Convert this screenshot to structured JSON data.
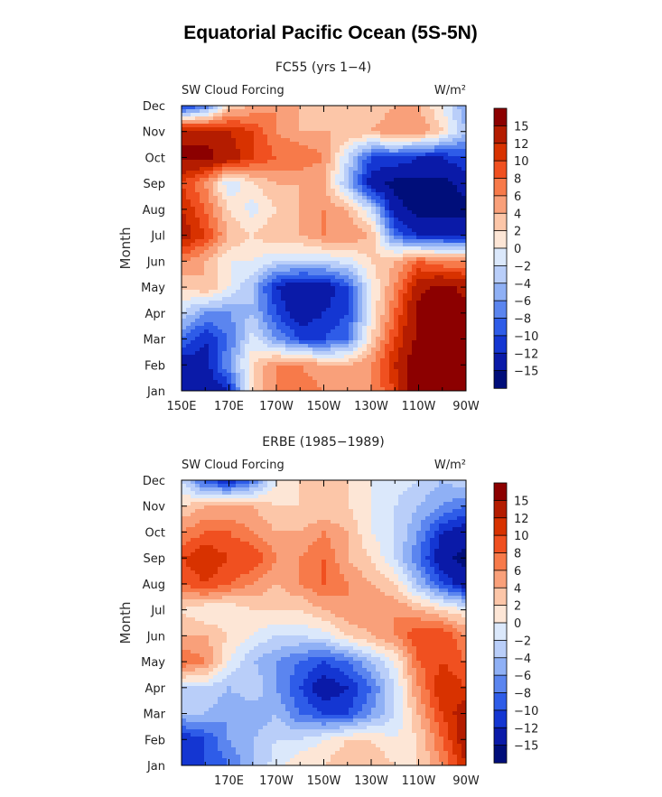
{
  "figure": {
    "title": "Equatorial Pacific Ocean (5S-5N)"
  },
  "colorbar": {
    "labels": [
      "15",
      "12",
      "10",
      "8",
      "6",
      "4",
      "2",
      "0",
      "−2",
      "−4",
      "−6",
      "−8",
      "−10",
      "−12",
      "−15"
    ],
    "colors": [
      "#8c0000",
      "#b41c00",
      "#d83200",
      "#f05020",
      "#f77a4a",
      "#f9a07a",
      "#fcc6a8",
      "#fde6d6",
      "#dbe8fb",
      "#b9cef9",
      "#8fb0f5",
      "#5b85ef",
      "#2e5ce8",
      "#1436d2",
      "#0a1aa8",
      "#000e7a"
    ],
    "levels": [
      -15,
      -12,
      -10,
      -8,
      -6,
      -4,
      -2,
      0,
      2,
      4,
      6,
      8,
      10,
      12,
      15
    ]
  },
  "chart_data": [
    {
      "type": "heatmap",
      "title": "FC55 (yrs 1−4)",
      "left_label": "SW Cloud Forcing",
      "units": "W/m²",
      "ylabel": "Month",
      "x_ticks": [
        "150E",
        "170E",
        "170W",
        "150W",
        "130W",
        "110W",
        "90W"
      ],
      "y_ticks": [
        "Jan",
        "Feb",
        "Mar",
        "Apr",
        "May",
        "Jun",
        "Jul",
        "Aug",
        "Sep",
        "Oct",
        "Nov",
        "Dec"
      ],
      "x_lon": [
        150,
        160,
        170,
        180,
        190,
        200,
        210,
        220,
        230,
        240,
        250,
        260,
        270
      ],
      "y_month": [
        "Jan",
        "Feb",
        "Mar",
        "Apr",
        "May",
        "Jun",
        "Jul",
        "Aug",
        "Sep",
        "Oct",
        "Nov",
        "Dec"
      ],
      "z": [
        [
          -14,
          -15,
          -12,
          2,
          6,
          8,
          6,
          4,
          6,
          10,
          18,
          18,
          16
        ],
        [
          -14,
          -13,
          -6,
          2,
          6,
          6,
          4,
          4,
          6,
          12,
          18,
          18,
          16
        ],
        [
          -8,
          -12,
          -8,
          -1,
          -6,
          -10,
          -10,
          -8,
          2,
          10,
          16,
          18,
          15
        ],
        [
          -2,
          -6,
          -6,
          -4,
          -10,
          -14,
          -12,
          -10,
          0,
          8,
          16,
          18,
          16
        ],
        [
          2,
          4,
          0,
          -4,
          -12,
          -15,
          -14,
          -10,
          0,
          6,
          14,
          16,
          14
        ],
        [
          6,
          4,
          0,
          0,
          -2,
          -2,
          -2,
          -1,
          2,
          4,
          8,
          6,
          6
        ],
        [
          14,
          10,
          4,
          2,
          4,
          4,
          6,
          6,
          4,
          -8,
          -12,
          -12,
          -12
        ],
        [
          12,
          8,
          2,
          -1,
          2,
          4,
          6,
          4,
          -2,
          -14,
          -16,
          -16,
          -16
        ],
        [
          10,
          6,
          -2,
          2,
          4,
          4,
          4,
          -4,
          -14,
          -16,
          -16,
          -16,
          -14
        ],
        [
          16,
          16,
          14,
          10,
          8,
          8,
          6,
          -2,
          -10,
          -10,
          -12,
          -12,
          -10
        ],
        [
          14,
          14,
          12,
          10,
          6,
          4,
          4,
          4,
          4,
          6,
          6,
          2,
          -4
        ],
        [
          -12,
          -8,
          2,
          4,
          6,
          4,
          2,
          2,
          2,
          4,
          4,
          0,
          -6
        ]
      ]
    },
    {
      "type": "heatmap",
      "title": "ERBE (1985−1989)",
      "left_label": "SW Cloud Forcing",
      "units": "W/m²",
      "ylabel": "Month",
      "x_ticks": [
        "",
        "170E",
        "170W",
        "150W",
        "130W",
        "110W",
        "90W"
      ],
      "y_ticks": [
        "Jan",
        "Feb",
        "Mar",
        "Apr",
        "May",
        "Jun",
        "Jul",
        "Aug",
        "Sep",
        "Oct",
        "Nov",
        "Dec"
      ],
      "x_lon": [
        150,
        160,
        170,
        180,
        190,
        200,
        210,
        220,
        230,
        240,
        250,
        260,
        270
      ],
      "y_month": [
        "Jan",
        "Feb",
        "Mar",
        "Apr",
        "May",
        "Jun",
        "Jul",
        "Aug",
        "Sep",
        "Oct",
        "Nov",
        "Dec"
      ],
      "z": [
        [
          -12,
          -10,
          -8,
          -4,
          -1,
          2,
          2,
          4,
          4,
          2,
          2,
          6,
          12
        ],
        [
          -12,
          -10,
          -6,
          -4,
          -2,
          -2,
          0,
          2,
          2,
          0,
          2,
          8,
          14
        ],
        [
          -4,
          -4,
          -6,
          -6,
          -4,
          -8,
          -10,
          -10,
          -6,
          -2,
          4,
          10,
          14
        ],
        [
          -2,
          -2,
          -4,
          -2,
          -6,
          -10,
          -14,
          -12,
          -8,
          -2,
          6,
          12,
          10
        ],
        [
          8,
          6,
          0,
          -4,
          -6,
          -8,
          -10,
          -8,
          -4,
          0,
          8,
          10,
          8
        ],
        [
          4,
          4,
          2,
          0,
          -2,
          -2,
          -1,
          2,
          4,
          6,
          10,
          10,
          6
        ],
        [
          2,
          0,
          0,
          2,
          2,
          2,
          4,
          6,
          6,
          6,
          4,
          2,
          0
        ],
        [
          8,
          10,
          8,
          6,
          4,
          6,
          8,
          6,
          4,
          2,
          -4,
          -10,
          -14
        ],
        [
          10,
          12,
          10,
          10,
          6,
          6,
          8,
          4,
          2,
          -2,
          -8,
          -14,
          -16
        ],
        [
          6,
          8,
          8,
          6,
          4,
          4,
          6,
          4,
          0,
          -2,
          -6,
          -12,
          -14
        ],
        [
          2,
          4,
          4,
          4,
          2,
          2,
          2,
          2,
          0,
          -2,
          -4,
          -6,
          -8
        ],
        [
          -2,
          -10,
          -12,
          -8,
          0,
          2,
          2,
          2,
          0,
          -1,
          -2,
          -4,
          -2
        ]
      ]
    }
  ]
}
